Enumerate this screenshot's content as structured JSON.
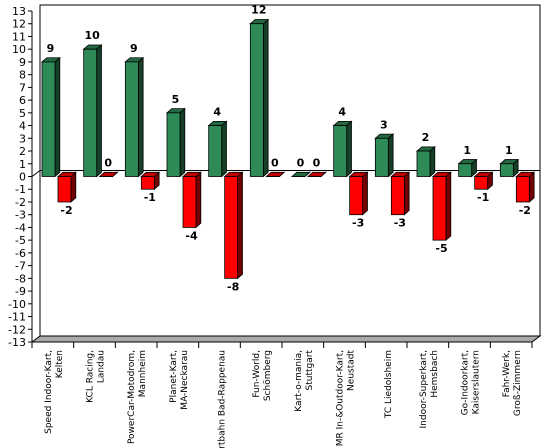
{
  "chart_data": {
    "type": "bar",
    "categories": [
      "Speed Indoor-Kart, Kelten",
      "KCL Racing, Landau",
      "PowerCar-Motodrom, Mannheim",
      "Planet-Kart, MA-Neckarau",
      "artbahn Bad-Rappenau",
      "Fun-World, Schömberg",
      "Kart-o-mania, Stuttgart",
      "MR In-&Outdoor-Kart, Neustadt",
      "TC Liedolsheim",
      "Indoor-Superkart, Hemsbach",
      "Go-Indoorkart, Kaiserslautern",
      "Fahr-Werk, Groß-Zimmern"
    ],
    "series": [
      {
        "values": [
          9,
          10,
          9,
          5,
          4,
          12,
          0,
          4,
          3,
          2,
          1,
          1
        ]
      },
      {
        "values": [
          -2,
          0,
          -1,
          -4,
          -8,
          0,
          0,
          -3,
          -3,
          -5,
          -1,
          -2
        ]
      }
    ],
    "colors": [
      "#2e8b57",
      "#ff0000"
    ],
    "ylim": [
      -13,
      13
    ],
    "yticks": [
      "13",
      "12",
      "11",
      "10",
      "9",
      "8",
      "7",
      "6",
      "5",
      "4",
      "3",
      "2",
      "1",
      "0",
      "-1",
      "-2",
      "-3",
      "-4",
      "-5",
      "-6",
      "-7",
      "-8",
      "-9",
      "-10",
      "-11",
      "-12",
      "-13"
    ],
    "value_labels": [
      [
        "9",
        "10",
        "9",
        "5",
        "4",
        "12",
        "0",
        "4",
        "3",
        "2",
        "1",
        "1"
      ],
      [
        "-2",
        "0",
        "-1",
        "-4",
        "-8",
        "0",
        "0",
        "-3",
        "-3",
        "-5",
        "-1",
        "-2"
      ]
    ],
    "grid": false,
    "style": "3d"
  }
}
